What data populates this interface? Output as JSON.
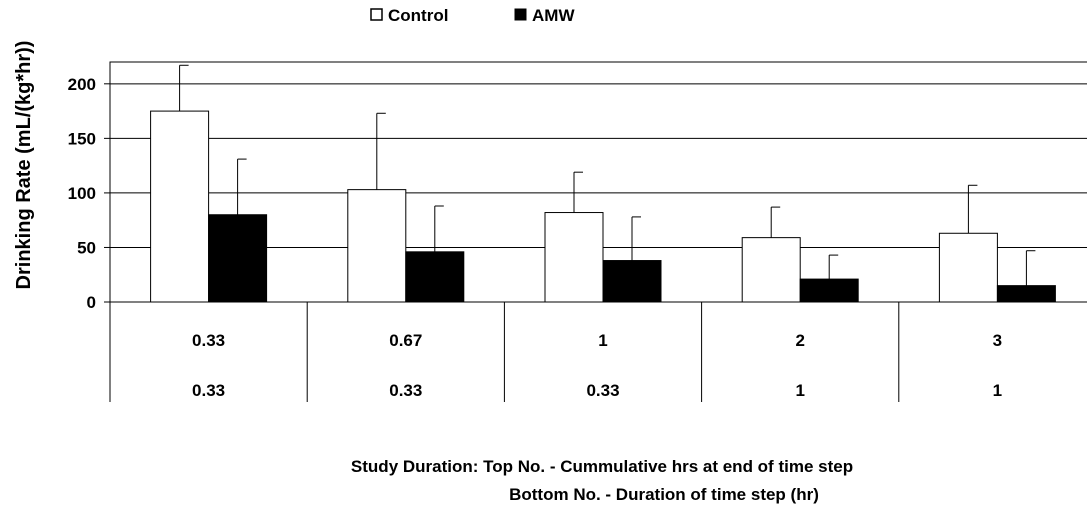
{
  "chart_data": {
    "type": "bar",
    "title": "",
    "ylabel": "Drinking Rate (mL/(kg*hr))",
    "xlabel_lines": [
      "Study Duration: Top No. - Cummulative hrs at end of time step",
      "Bottom No. - Duration of time step (hr)"
    ],
    "categories_top": [
      "0.33",
      "0.67",
      "1",
      "2",
      "3"
    ],
    "categories_bottom": [
      "0.33",
      "0.33",
      "0.33",
      "1",
      "1"
    ],
    "ylim": [
      0,
      220
    ],
    "yticks": [
      0,
      50,
      100,
      150,
      200
    ],
    "ytick_labels": [
      "0",
      "50",
      "100",
      "150",
      "200"
    ],
    "grid": true,
    "legend_placement": "top-center",
    "series": [
      {
        "name": "Control",
        "color": "#ffffff",
        "values": [
          175,
          103,
          82,
          59,
          63
        ],
        "errors": [
          42,
          70,
          37,
          28,
          44
        ]
      },
      {
        "name": "AMW",
        "color": "#000000",
        "values": [
          80,
          46,
          38,
          21,
          15
        ],
        "errors": [
          51,
          42,
          40,
          22,
          32
        ]
      }
    ]
  }
}
